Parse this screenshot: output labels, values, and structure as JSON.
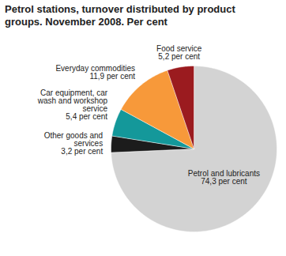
{
  "chart_data": {
    "type": "pie",
    "title": "Petrol stations, turnover distributed by product groups. November 2008. Per cent",
    "categories": [
      "Petrol and lubricants",
      "Other goods and services",
      "Car equipment, car wash and workshop service",
      "Everyday commodities",
      "Food service"
    ],
    "values": [
      74.3,
      3.2,
      5.4,
      11.9,
      5.2
    ],
    "value_labels": [
      "74,3 per cent",
      "3,2 per cent",
      "5,4 per cent",
      "11,9 per cent",
      "5,2 per cent"
    ],
    "colors": [
      "#d3d3d3",
      "#1c1c1c",
      "#14989a",
      "#f7993a",
      "#9b1b1f"
    ],
    "data_labels": true
  }
}
